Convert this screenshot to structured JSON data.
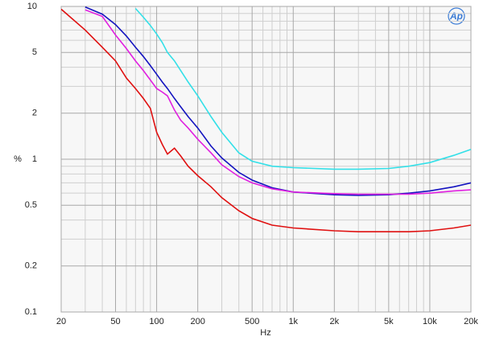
{
  "chart_data": {
    "type": "line",
    "x_label": "Hz",
    "y_label": "%",
    "x": [
      20,
      30,
      40,
      50,
      60,
      70,
      80,
      90,
      100,
      110,
      120,
      135,
      150,
      170,
      200,
      250,
      300,
      400,
      500,
      700,
      1000,
      2000,
      3000,
      5000,
      7000,
      10000,
      15000,
      20000
    ],
    "series": [
      {
        "color": "#33e0e8",
        "values": [
          null,
          null,
          null,
          null,
          null,
          9.7,
          8.5,
          7.5,
          6.6,
          5.8,
          5.0,
          4.4,
          3.8,
          3.2,
          2.6,
          1.9,
          1.5,
          1.1,
          0.97,
          0.9,
          0.88,
          0.86,
          0.86,
          0.87,
          0.9,
          0.95,
          1.06,
          1.16
        ]
      },
      {
        "color": "#1414c0",
        "values": [
          null,
          9.9,
          8.9,
          7.6,
          6.4,
          5.4,
          4.7,
          4.1,
          3.6,
          3.2,
          2.9,
          2.5,
          2.2,
          1.9,
          1.6,
          1.22,
          1.02,
          0.82,
          0.73,
          0.65,
          0.61,
          0.585,
          0.58,
          0.585,
          0.6,
          0.62,
          0.66,
          0.7
        ]
      },
      {
        "color": "#e020e0",
        "values": [
          null,
          9.5,
          8.6,
          6.5,
          5.3,
          4.4,
          3.8,
          3.3,
          2.9,
          2.75,
          2.6,
          2.1,
          1.8,
          1.6,
          1.35,
          1.1,
          0.92,
          0.77,
          0.7,
          0.64,
          0.61,
          0.595,
          0.59,
          0.59,
          0.59,
          0.6,
          0.62,
          0.63
        ]
      },
      {
        "color": "#e01010",
        "values": [
          9.6,
          7.0,
          5.4,
          4.4,
          3.4,
          2.9,
          2.5,
          2.15,
          1.5,
          1.25,
          1.08,
          1.18,
          1.05,
          0.9,
          0.78,
          0.66,
          0.56,
          0.46,
          0.41,
          0.37,
          0.355,
          0.34,
          0.335,
          0.335,
          0.335,
          0.34,
          0.355,
          0.37
        ]
      }
    ],
    "xlog": true,
    "ylog": true,
    "xlim": [
      20,
      20000
    ],
    "ylim": [
      0.1,
      10
    ],
    "xticks": [
      20,
      50,
      100,
      200,
      500,
      {
        "value": 1000,
        "label": "1k"
      },
      {
        "value": 2000,
        "label": "2k"
      },
      {
        "value": 5000,
        "label": "5k"
      },
      {
        "value": 10000,
        "label": "10k"
      },
      {
        "value": 20000,
        "label": "20k"
      }
    ],
    "xminor": [
      30,
      40,
      60,
      70,
      80,
      90,
      300,
      400,
      600,
      700,
      800,
      900,
      3000,
      4000,
      6000,
      7000,
      8000,
      9000
    ],
    "yticks": [
      0.1,
      0.2,
      0.5,
      1,
      2,
      5,
      10
    ],
    "yminor": [
      0.3,
      0.4,
      0.6,
      0.7,
      0.8,
      0.9,
      3,
      4,
      6,
      7,
      8,
      9
    ],
    "grid": true
  },
  "logo": "Ap"
}
